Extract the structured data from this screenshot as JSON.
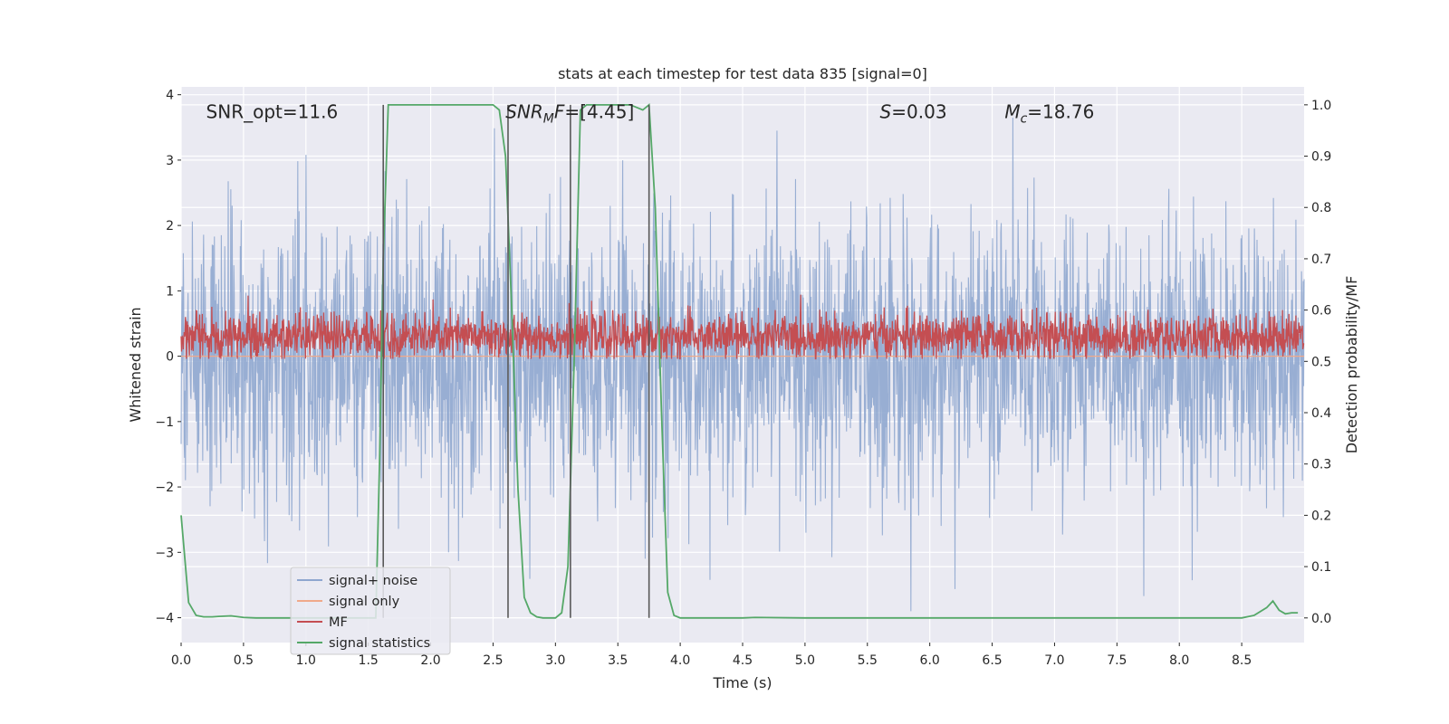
{
  "chart_data": {
    "type": "line",
    "title": "stats at each timestep for test data 835 [signal=0]",
    "xlabel": "Time (s)",
    "ylabel": "Whitened strain",
    "ylabel_right": "Detection probability/MF",
    "xlim": [
      0,
      9
    ],
    "ylim": [
      -4.38,
      4.12
    ],
    "ylim_right": [
      -0.048,
      1.035
    ],
    "x_ticks": [
      0.0,
      0.5,
      1.0,
      1.5,
      2.0,
      2.5,
      3.0,
      3.5,
      4.0,
      4.5,
      5.0,
      5.5,
      6.0,
      6.5,
      7.0,
      7.5,
      8.0,
      8.5
    ],
    "x_tick_labels": [
      "0.0",
      "0.5",
      "1.0",
      "1.5",
      "2.0",
      "2.5",
      "3.0",
      "3.5",
      "4.0",
      "4.5",
      "5.0",
      "5.5",
      "6.0",
      "6.5",
      "7.0",
      "7.5",
      "8.0",
      "8.5"
    ],
    "y_ticks": [
      -4,
      -3,
      -2,
      -1,
      0,
      1,
      2,
      3,
      4
    ],
    "y_tick_labels": [
      "−4",
      "−3",
      "−2",
      "−1",
      "0",
      "1",
      "2",
      "3",
      "4"
    ],
    "y_ticks_right": [
      0.0,
      0.1,
      0.2,
      0.3,
      0.4,
      0.5,
      0.6,
      0.7,
      0.8,
      0.9,
      1.0
    ],
    "y_tick_labels_right": [
      "0.0",
      "0.1",
      "0.2",
      "0.3",
      "0.4",
      "0.5",
      "0.6",
      "0.7",
      "0.8",
      "0.9",
      "1.0"
    ],
    "grid": true,
    "annotations": [
      {
        "id": "snr-opt",
        "parts": [
          {
            "t": "SNR_opt=11.6",
            "i": false
          }
        ],
        "x": 0.2
      },
      {
        "id": "snr-mf",
        "parts": [
          {
            "t": "SNR",
            "i": true
          },
          {
            "t": "M",
            "i": true,
            "sub": true
          },
          {
            "t": "F",
            "i": true
          },
          {
            "t": "=[4.45]",
            "i": false
          }
        ],
        "x": 2.6
      },
      {
        "id": "s-value",
        "parts": [
          {
            "t": "S",
            "i": true
          },
          {
            "t": "=0.03",
            "i": false
          }
        ],
        "x": 5.6
      },
      {
        "id": "mc-value",
        "parts": [
          {
            "t": "M",
            "i": true
          },
          {
            "t": "c",
            "i": true,
            "sub": true
          },
          {
            "t": "=18.76",
            "i": false
          }
        ],
        "x": 6.6
      }
    ],
    "annotation_y": 3.74,
    "vertical_lines": [
      {
        "x": 1.62,
        "y_from": 0.0,
        "y_to": 1.0
      },
      {
        "x": 2.62,
        "y_from": 0.0,
        "y_to": 1.0
      },
      {
        "x": 3.12,
        "y_from": 0.0,
        "y_to": 1.0
      },
      {
        "x": 3.75,
        "y_from": 0.0,
        "y_to": 1.0
      }
    ],
    "legend": {
      "position": "lower left",
      "entries": [
        {
          "label": "signal+ noise",
          "color": "#8fa7cf"
        },
        {
          "label": "signal only",
          "color": "#f0a98a"
        },
        {
          "label": "MF",
          "color": "#c44e52"
        },
        {
          "label": "signal statistics",
          "color": "#55a868"
        }
      ]
    },
    "series": [
      {
        "name": "signal+ noise",
        "axis": "left",
        "color": "#8fa7cf",
        "kind": "noise",
        "x_range": [
          0,
          9
        ],
        "std": 1.05,
        "max": 3.8,
        "min": -3.9
      },
      {
        "name": "signal only",
        "axis": "left",
        "color": "#f0a98a",
        "kind": "flat",
        "values_constant": 0
      },
      {
        "name": "MF",
        "axis": "right",
        "color": "#c44e52",
        "kind": "noise",
        "x_range": [
          0,
          9
        ],
        "mean": 0.548,
        "std": 0.022,
        "max": 0.63,
        "min": 0.505
      },
      {
        "name": "signal statistics",
        "axis": "right",
        "color": "#55a868",
        "x": [
          0.0,
          0.06,
          0.12,
          0.18,
          0.25,
          0.3,
          0.4,
          0.5,
          0.6,
          0.7,
          0.8,
          0.9,
          1.0,
          1.1,
          1.2,
          1.3,
          1.4,
          1.5,
          1.56,
          1.59,
          1.62,
          1.66,
          1.7,
          1.8,
          2.0,
          2.2,
          2.4,
          2.5,
          2.55,
          2.6,
          2.65,
          2.7,
          2.75,
          2.8,
          2.85,
          2.9,
          3.0,
          3.05,
          3.1,
          3.15,
          3.2,
          3.25,
          3.3,
          3.4,
          3.5,
          3.6,
          3.7,
          3.75,
          3.8,
          3.85,
          3.9,
          3.95,
          4.0,
          4.2,
          4.5,
          4.6,
          5.0,
          6.0,
          7.0,
          8.0,
          8.3,
          8.5,
          8.6,
          8.7,
          8.75,
          8.8,
          8.85,
          8.9,
          8.95
        ],
        "y": [
          0.2,
          0.03,
          0.005,
          0.002,
          0.002,
          0.003,
          0.004,
          0.001,
          0.0,
          0.0,
          0.0,
          0.0,
          0.0,
          0.0,
          0.0,
          0.0,
          0.0,
          0.0,
          0.0,
          0.3,
          0.7,
          1.0,
          1.0,
          1.0,
          1.0,
          1.0,
          1.0,
          1.0,
          0.99,
          0.9,
          0.6,
          0.25,
          0.04,
          0.01,
          0.002,
          0.0,
          0.0,
          0.01,
          0.1,
          0.5,
          0.99,
          1.0,
          1.0,
          1.0,
          1.0,
          1.0,
          0.99,
          1.0,
          0.8,
          0.4,
          0.05,
          0.005,
          0.0,
          0.0,
          0.0,
          0.001,
          0.0,
          0.0,
          0.0,
          0.0,
          0.0,
          0.0,
          0.005,
          0.02,
          0.033,
          0.015,
          0.008,
          0.01,
          0.01
        ]
      }
    ]
  }
}
